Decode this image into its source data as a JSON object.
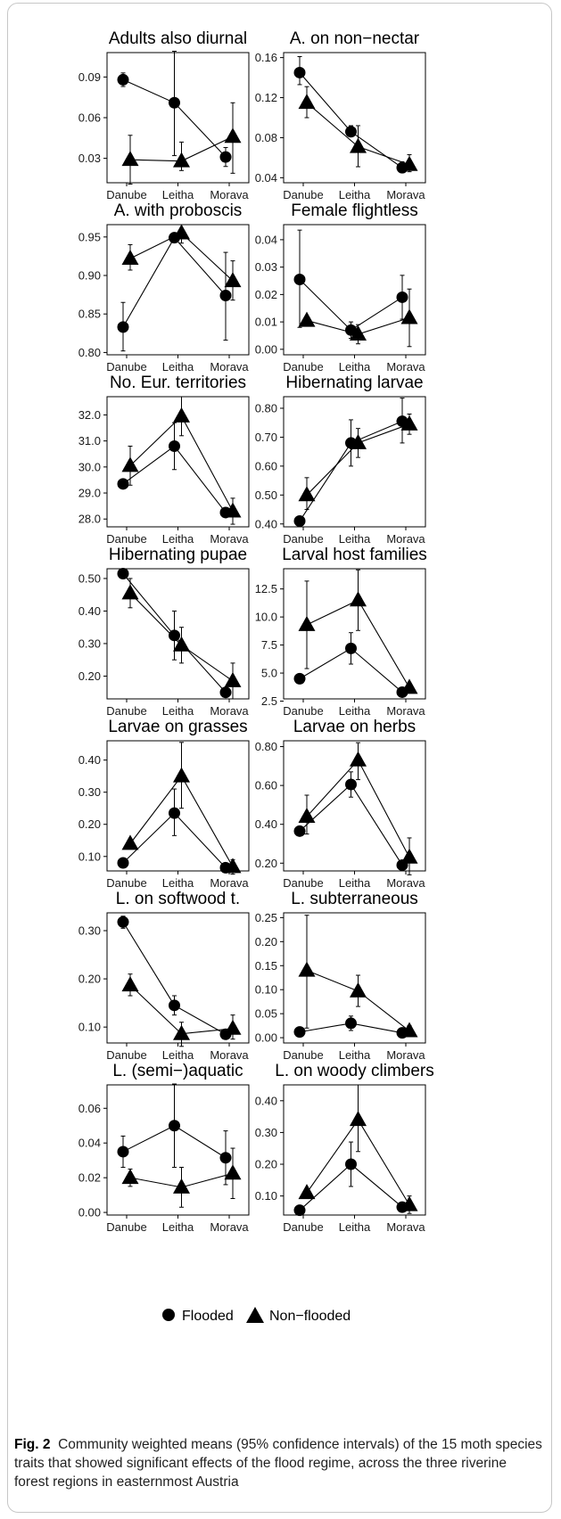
{
  "caption": {
    "label": "Fig. 2",
    "text": "Community weighted means (95% confidence intervals) of the 15 moth species traits that showed significant effects of the flood regime, across the three riverine forest regions in easternmost Austria"
  },
  "legend": {
    "flooded": "Flooded",
    "non_flooded": "Non−flooded"
  },
  "colors": {
    "marks": "#000000",
    "frame": "#000000"
  },
  "chart_data": [
    {
      "type": "line",
      "title": "Adults also diurnal",
      "categories": [
        "Danube",
        "Leitha",
        "Morava"
      ],
      "yticks": [
        "0.03",
        "0.06",
        "0.09"
      ],
      "ylim": [
        0.012,
        0.108
      ],
      "series": [
        {
          "name": "Flooded",
          "marker": "circle",
          "values": [
            0.088,
            0.071,
            0.031
          ],
          "ci_low": [
            0.083,
            0.032,
            0.024
          ],
          "ci_high": [
            0.093,
            0.109,
            0.038
          ]
        },
        {
          "name": "Non−flooded",
          "marker": "triangle",
          "values": [
            0.029,
            0.028,
            0.046
          ],
          "ci_low": [
            0.011,
            0.021,
            0.019
          ],
          "ci_high": [
            0.047,
            0.042,
            0.071
          ]
        }
      ]
    },
    {
      "type": "line",
      "title": "A. on non−nectar",
      "categories": [
        "Danube",
        "Leitha",
        "Morava"
      ],
      "yticks": [
        "0.04",
        "0.08",
        "0.12",
        "0.16"
      ],
      "ylim": [
        0.035,
        0.165
      ],
      "series": [
        {
          "name": "Flooded",
          "marker": "circle",
          "values": [
            0.145,
            0.086,
            0.05
          ],
          "ci_low": [
            0.133,
            0.081,
            0.045
          ],
          "ci_high": [
            0.161,
            0.092,
            0.056
          ]
        },
        {
          "name": "Non−flooded",
          "marker": "triangle",
          "values": [
            0.115,
            0.071,
            0.053
          ],
          "ci_low": [
            0.1,
            0.051,
            0.046
          ],
          "ci_high": [
            0.131,
            0.092,
            0.063
          ]
        }
      ]
    },
    {
      "type": "line",
      "title": "A. with proboscis",
      "categories": [
        "Danube",
        "Leitha",
        "Morava"
      ],
      "yticks": [
        "0.80",
        "0.85",
        "0.90",
        "0.95"
      ],
      "ylim": [
        0.797,
        0.966
      ],
      "series": [
        {
          "name": "Flooded",
          "marker": "circle",
          "values": [
            0.833,
            0.949,
            0.874
          ],
          "ci_low": [
            0.802,
            0.947,
            0.816
          ],
          "ci_high": [
            0.865,
            0.951,
            0.93
          ]
        },
        {
          "name": "Non−flooded",
          "marker": "triangle",
          "values": [
            0.922,
            0.955,
            0.893
          ],
          "ci_low": [
            0.907,
            0.942,
            0.868
          ],
          "ci_high": [
            0.94,
            0.966,
            0.919
          ]
        }
      ]
    },
    {
      "type": "line",
      "title": "Female flightless",
      "categories": [
        "Danube",
        "Leitha",
        "Morava"
      ],
      "yticks": [
        "0.00",
        "0.01",
        "0.02",
        "0.03",
        "0.04"
      ],
      "ylim": [
        -0.002,
        0.0455
      ],
      "series": [
        {
          "name": "Flooded",
          "marker": "circle",
          "values": [
            0.0255,
            0.007,
            0.019
          ],
          "ci_low": [
            0.008,
            0.004,
            0.011
          ],
          "ci_high": [
            0.0435,
            0.01,
            0.027
          ]
        },
        {
          "name": "Non−flooded",
          "marker": "triangle",
          "values": [
            0.0105,
            0.0055,
            0.0115
          ],
          "ci_low": [
            0.009,
            0.002,
            0.001
          ],
          "ci_high": [
            0.012,
            0.009,
            0.022
          ]
        }
      ]
    },
    {
      "type": "line",
      "title": "No. Eur. territories",
      "categories": [
        "Danube",
        "Leitha",
        "Morava"
      ],
      "yticks": [
        "28.0",
        "29.0",
        "30.0",
        "31.0",
        "32.0"
      ],
      "ylim": [
        27.7,
        32.7
      ],
      "series": [
        {
          "name": "Flooded",
          "marker": "circle",
          "values": [
            29.35,
            30.8,
            28.25
          ],
          "ci_low": [
            29.2,
            29.9,
            28.2
          ],
          "ci_high": [
            29.5,
            31.7,
            28.3
          ]
        },
        {
          "name": "Non−flooded",
          "marker": "triangle",
          "values": [
            30.05,
            31.95,
            28.3
          ],
          "ci_low": [
            29.3,
            31.2,
            27.8
          ],
          "ci_high": [
            30.8,
            32.7,
            28.8
          ]
        }
      ]
    },
    {
      "type": "line",
      "title": "Hibernating larvae",
      "categories": [
        "Danube",
        "Leitha",
        "Morava"
      ],
      "yticks": [
        "0.40",
        "0.50",
        "0.60",
        "0.70",
        "0.80"
      ],
      "ylim": [
        0.39,
        0.84
      ],
      "series": [
        {
          "name": "Flooded",
          "marker": "circle",
          "values": [
            0.41,
            0.68,
            0.755
          ],
          "ci_low": [
            0.4,
            0.6,
            0.68
          ],
          "ci_high": [
            0.42,
            0.76,
            0.835
          ]
        },
        {
          "name": "Non−flooded",
          "marker": "triangle",
          "values": [
            0.5,
            0.68,
            0.745
          ],
          "ci_low": [
            0.45,
            0.63,
            0.71
          ],
          "ci_high": [
            0.56,
            0.73,
            0.78
          ]
        }
      ]
    },
    {
      "type": "line",
      "title": "Hibernating pupae",
      "categories": [
        "Danube",
        "Leitha",
        "Morava"
      ],
      "yticks": [
        "0.20",
        "0.30",
        "0.40",
        "0.50"
      ],
      "ylim": [
        0.13,
        0.53
      ],
      "series": [
        {
          "name": "Flooded",
          "marker": "circle",
          "values": [
            0.515,
            0.325,
            0.15
          ],
          "ci_low": [
            0.505,
            0.25,
            0.14
          ],
          "ci_high": [
            0.525,
            0.4,
            0.16
          ]
        },
        {
          "name": "Non−flooded",
          "marker": "triangle",
          "values": [
            0.455,
            0.295,
            0.185
          ],
          "ci_low": [
            0.41,
            0.24,
            0.13
          ],
          "ci_high": [
            0.5,
            0.35,
            0.24
          ]
        }
      ]
    },
    {
      "type": "line",
      "title": "Larval host families",
      "categories": [
        "Danube",
        "Leitha",
        "Morava"
      ],
      "yticks": [
        "2.5",
        "5.0",
        "7.5",
        "10.0",
        "12.5"
      ],
      "ylim": [
        2.7,
        14.3
      ],
      "series": [
        {
          "name": "Flooded",
          "marker": "circle",
          "values": [
            4.5,
            7.2,
            3.3
          ],
          "ci_low": [
            4.2,
            5.8,
            3.1
          ],
          "ci_high": [
            4.8,
            8.6,
            3.5
          ]
        },
        {
          "name": "Non−flooded",
          "marker": "triangle",
          "values": [
            9.3,
            11.5,
            3.7
          ],
          "ci_low": [
            5.4,
            8.8,
            3.3
          ],
          "ci_high": [
            13.2,
            14.2,
            4.1
          ]
        }
      ]
    },
    {
      "type": "line",
      "title": "Larvae on grasses",
      "categories": [
        "Danube",
        "Leitha",
        "Morava"
      ],
      "yticks": [
        "0.10",
        "0.20",
        "0.30",
        "0.40"
      ],
      "ylim": [
        0.055,
        0.46
      ],
      "series": [
        {
          "name": "Flooded",
          "marker": "circle",
          "values": [
            0.08,
            0.235,
            0.065
          ],
          "ci_low": [
            0.075,
            0.165,
            0.055
          ],
          "ci_high": [
            0.085,
            0.31,
            0.075
          ]
        },
        {
          "name": "Non−flooded",
          "marker": "triangle",
          "values": [
            0.14,
            0.35,
            0.068
          ],
          "ci_low": [
            0.13,
            0.25,
            0.045
          ],
          "ci_high": [
            0.15,
            0.455,
            0.09
          ]
        }
      ]
    },
    {
      "type": "line",
      "title": "Larvae on herbs",
      "categories": [
        "Danube",
        "Leitha",
        "Morava"
      ],
      "yticks": [
        "0.20",
        "0.40",
        "0.60",
        "0.80"
      ],
      "ylim": [
        0.16,
        0.83
      ],
      "series": [
        {
          "name": "Flooded",
          "marker": "circle",
          "values": [
            0.365,
            0.605,
            0.19
          ],
          "ci_low": [
            0.345,
            0.54,
            0.18
          ],
          "ci_high": [
            0.385,
            0.67,
            0.2
          ]
        },
        {
          "name": "Non−flooded",
          "marker": "triangle",
          "values": [
            0.44,
            0.73,
            0.23
          ],
          "ci_low": [
            0.35,
            0.63,
            0.14
          ],
          "ci_high": [
            0.55,
            0.82,
            0.33
          ]
        }
      ]
    },
    {
      "type": "line",
      "title": "L. on softwood t.",
      "categories": [
        "Danube",
        "Leitha",
        "Morava"
      ],
      "yticks": [
        "0.10",
        "0.20",
        "0.30"
      ],
      "ylim": [
        0.067,
        0.337
      ],
      "series": [
        {
          "name": "Flooded",
          "marker": "circle",
          "values": [
            0.318,
            0.145,
            0.085
          ],
          "ci_low": [
            0.305,
            0.125,
            0.08
          ],
          "ci_high": [
            0.33,
            0.165,
            0.09
          ]
        },
        {
          "name": "Non−flooded",
          "marker": "triangle",
          "values": [
            0.187,
            0.086,
            0.097
          ],
          "ci_low": [
            0.165,
            0.06,
            0.075
          ],
          "ci_high": [
            0.21,
            0.11,
            0.125
          ]
        }
      ]
    },
    {
      "type": "line",
      "title": "L. subterraneous",
      "categories": [
        "Danube",
        "Leitha",
        "Morava"
      ],
      "yticks": [
        "0.00",
        "0.05",
        "0.10",
        "0.15",
        "0.20",
        "0.25"
      ],
      "ylim": [
        -0.011,
        0.26
      ],
      "series": [
        {
          "name": "Flooded",
          "marker": "circle",
          "values": [
            0.012,
            0.03,
            0.01
          ],
          "ci_low": [
            0.008,
            0.015,
            0.005
          ],
          "ci_high": [
            0.016,
            0.045,
            0.015
          ]
        },
        {
          "name": "Non−flooded",
          "marker": "triangle",
          "values": [
            0.14,
            0.097,
            0.014
          ],
          "ci_low": [
            0.02,
            0.065,
            0.005
          ],
          "ci_high": [
            0.255,
            0.13,
            0.025
          ]
        }
      ]
    },
    {
      "type": "line",
      "title": "L. (semi−)aquatic",
      "categories": [
        "Danube",
        "Leitha",
        "Morava"
      ],
      "yticks": [
        "0.00",
        "0.02",
        "0.04",
        "0.06"
      ],
      "ylim": [
        -0.0015,
        0.0735
      ],
      "series": [
        {
          "name": "Flooded",
          "marker": "circle",
          "values": [
            0.035,
            0.05,
            0.0315
          ],
          "ci_low": [
            0.026,
            0.026,
            0.016
          ],
          "ci_high": [
            0.044,
            0.074,
            0.047
          ]
        },
        {
          "name": "Non−flooded",
          "marker": "triangle",
          "values": [
            0.02,
            0.0145,
            0.0225
          ],
          "ci_low": [
            0.015,
            0.003,
            0.008
          ],
          "ci_high": [
            0.025,
            0.026,
            0.037
          ]
        }
      ]
    },
    {
      "type": "line",
      "title": "L. on woody climbers",
      "categories": [
        "Danube",
        "Leitha",
        "Morava"
      ],
      "yticks": [
        "0.10",
        "0.20",
        "0.30",
        "0.40"
      ],
      "ylim": [
        0.04,
        0.45
      ],
      "series": [
        {
          "name": "Flooded",
          "marker": "circle",
          "values": [
            0.055,
            0.2,
            0.065
          ],
          "ci_low": [
            0.05,
            0.13,
            0.06
          ],
          "ci_high": [
            0.06,
            0.27,
            0.07
          ]
        },
        {
          "name": "Non−flooded",
          "marker": "triangle",
          "values": [
            0.11,
            0.34,
            0.072
          ],
          "ci_low": [
            0.1,
            0.24,
            0.045
          ],
          "ci_high": [
            0.12,
            0.45,
            0.1
          ]
        }
      ]
    }
  ]
}
